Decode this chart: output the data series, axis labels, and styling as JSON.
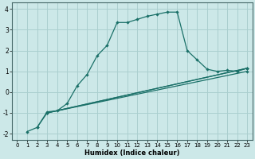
{
  "xlabel": "Humidex (Indice chaleur)",
  "ylabel": "",
  "bg_color": "#cce8e8",
  "grid_color": "#aacfcf",
  "line_color": "#1a7068",
  "xlim": [
    -0.5,
    23.5
  ],
  "ylim": [
    -2.3,
    4.3
  ],
  "xticks": [
    0,
    1,
    2,
    3,
    4,
    5,
    6,
    7,
    8,
    9,
    10,
    11,
    12,
    13,
    14,
    15,
    16,
    17,
    18,
    19,
    20,
    21,
    22,
    23
  ],
  "yticks": [
    -2,
    -1,
    0,
    1,
    2,
    3,
    4
  ],
  "main_x": [
    1,
    2,
    3,
    4,
    5,
    6,
    7,
    8,
    9,
    10,
    11,
    12,
    13,
    14,
    15,
    16,
    17,
    18,
    19,
    20,
    21,
    22,
    23
  ],
  "main_y": [
    -1.9,
    -1.7,
    -0.95,
    -0.9,
    -0.55,
    0.3,
    0.85,
    1.75,
    2.25,
    3.35,
    3.35,
    3.5,
    3.65,
    3.75,
    3.85,
    3.85,
    2.0,
    1.55,
    1.1,
    1.0,
    1.05,
    1.0,
    1.15
  ],
  "line1_x": [
    2,
    3,
    23
  ],
  "line1_y": [
    -1.7,
    -1.0,
    1.15
  ],
  "line2_x": [
    3,
    23
  ],
  "line2_y": [
    -1.0,
    1.15
  ],
  "line3_x": [
    3,
    23
  ],
  "line3_y": [
    -1.0,
    1.0
  ]
}
